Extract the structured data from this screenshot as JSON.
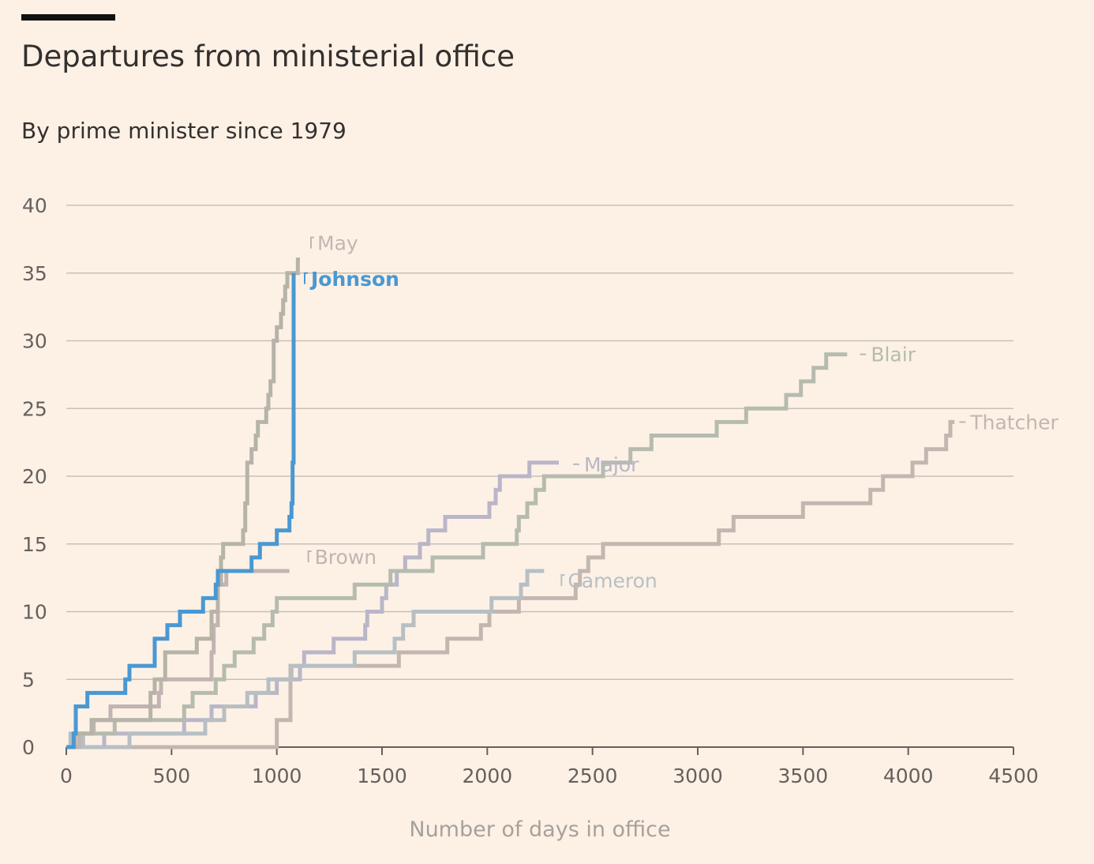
{
  "header": {
    "title": "Departures from ministerial office",
    "subtitle": "By prime minister since 1979"
  },
  "colors": {
    "background": "#fdf1e6",
    "highlight": "#4a98d2",
    "muted": "#c2b7b0"
  },
  "chart_data": {
    "type": "line",
    "step": true,
    "title": "Departures from ministerial office",
    "subtitle": "By prime minister since 1979",
    "xlabel": "Number of days in office",
    "ylabel": "",
    "xlim": [
      0,
      4500
    ],
    "ylim": [
      0,
      40
    ],
    "xticks": [
      0,
      500,
      1000,
      1500,
      2000,
      2500,
      3000,
      3500,
      4000,
      4500
    ],
    "yticks": [
      0,
      5,
      10,
      15,
      20,
      25,
      30,
      35,
      40
    ],
    "grid": true,
    "series": [
      {
        "name": "Thatcher",
        "color": "#c2b7b0",
        "label_color": "#c2b7b0",
        "points": [
          [
            0,
            0
          ],
          [
            1000,
            0
          ],
          [
            1000,
            2
          ],
          [
            1065,
            2
          ],
          [
            1065,
            6
          ],
          [
            1580,
            6
          ],
          [
            1580,
            7
          ],
          [
            1810,
            7
          ],
          [
            1810,
            8
          ],
          [
            1970,
            8
          ],
          [
            1970,
            9
          ],
          [
            2010,
            9
          ],
          [
            2010,
            10
          ],
          [
            2150,
            10
          ],
          [
            2150,
            11
          ],
          [
            2420,
            11
          ],
          [
            2420,
            12
          ],
          [
            2440,
            12
          ],
          [
            2440,
            13
          ],
          [
            2480,
            13
          ],
          [
            2480,
            14
          ],
          [
            2550,
            14
          ],
          [
            2550,
            15
          ],
          [
            3100,
            15
          ],
          [
            3100,
            16
          ],
          [
            3170,
            16
          ],
          [
            3170,
            17
          ],
          [
            3500,
            17
          ],
          [
            3500,
            18
          ],
          [
            3820,
            18
          ],
          [
            3820,
            19
          ],
          [
            3880,
            19
          ],
          [
            3880,
            20
          ],
          [
            4020,
            20
          ],
          [
            4020,
            21
          ],
          [
            4085,
            21
          ],
          [
            4085,
            22
          ],
          [
            4180,
            22
          ],
          [
            4180,
            23
          ],
          [
            4200,
            23
          ],
          [
            4200,
            24
          ],
          [
            4220,
            24
          ]
        ]
      },
      {
        "name": "Major",
        "color": "#b9b6c8",
        "label_color": "#b9b6c8",
        "points": [
          [
            0,
            0
          ],
          [
            180,
            0
          ],
          [
            180,
            1
          ],
          [
            560,
            1
          ],
          [
            560,
            2
          ],
          [
            690,
            2
          ],
          [
            690,
            3
          ],
          [
            900,
            3
          ],
          [
            900,
            4
          ],
          [
            1000,
            4
          ],
          [
            1000,
            5
          ],
          [
            1110,
            5
          ],
          [
            1110,
            6
          ],
          [
            1130,
            6
          ],
          [
            1130,
            7
          ],
          [
            1270,
            7
          ],
          [
            1270,
            8
          ],
          [
            1420,
            8
          ],
          [
            1420,
            9
          ],
          [
            1430,
            9
          ],
          [
            1430,
            10
          ],
          [
            1500,
            10
          ],
          [
            1500,
            11
          ],
          [
            1520,
            11
          ],
          [
            1520,
            12
          ],
          [
            1570,
            12
          ],
          [
            1570,
            13
          ],
          [
            1610,
            13
          ],
          [
            1610,
            14
          ],
          [
            1680,
            14
          ],
          [
            1680,
            15
          ],
          [
            1720,
            15
          ],
          [
            1720,
            16
          ],
          [
            1800,
            16
          ],
          [
            1800,
            17
          ],
          [
            2010,
            17
          ],
          [
            2010,
            18
          ],
          [
            2040,
            18
          ],
          [
            2040,
            19
          ],
          [
            2060,
            19
          ],
          [
            2060,
            20
          ],
          [
            2200,
            20
          ],
          [
            2200,
            21
          ],
          [
            2340,
            21
          ]
        ]
      },
      {
        "name": "Blair",
        "color": "#b5bcae",
        "label_color": "#b5bcae",
        "points": [
          [
            0,
            0
          ],
          [
            70,
            0
          ],
          [
            70,
            1
          ],
          [
            230,
            1
          ],
          [
            230,
            2
          ],
          [
            560,
            2
          ],
          [
            560,
            3
          ],
          [
            600,
            3
          ],
          [
            600,
            4
          ],
          [
            710,
            4
          ],
          [
            710,
            5
          ],
          [
            750,
            5
          ],
          [
            750,
            6
          ],
          [
            800,
            6
          ],
          [
            800,
            7
          ],
          [
            890,
            7
          ],
          [
            890,
            8
          ],
          [
            940,
            8
          ],
          [
            940,
            9
          ],
          [
            980,
            9
          ],
          [
            980,
            10
          ],
          [
            1000,
            10
          ],
          [
            1000,
            11
          ],
          [
            1370,
            11
          ],
          [
            1370,
            12
          ],
          [
            1540,
            12
          ],
          [
            1540,
            13
          ],
          [
            1740,
            13
          ],
          [
            1740,
            14
          ],
          [
            1980,
            14
          ],
          [
            1980,
            15
          ],
          [
            2140,
            15
          ],
          [
            2140,
            16
          ],
          [
            2150,
            16
          ],
          [
            2150,
            17
          ],
          [
            2190,
            17
          ],
          [
            2190,
            18
          ],
          [
            2230,
            18
          ],
          [
            2230,
            19
          ],
          [
            2270,
            19
          ],
          [
            2270,
            20
          ],
          [
            2550,
            20
          ],
          [
            2550,
            21
          ],
          [
            2680,
            21
          ],
          [
            2680,
            22
          ],
          [
            2780,
            22
          ],
          [
            2780,
            23
          ],
          [
            3090,
            23
          ],
          [
            3090,
            24
          ],
          [
            3230,
            24
          ],
          [
            3230,
            25
          ],
          [
            3420,
            25
          ],
          [
            3420,
            26
          ],
          [
            3490,
            26
          ],
          [
            3490,
            27
          ],
          [
            3550,
            27
          ],
          [
            3550,
            28
          ],
          [
            3610,
            28
          ],
          [
            3610,
            29
          ],
          [
            3710,
            29
          ]
        ]
      },
      {
        "name": "Brown",
        "color": "#c2b4b2",
        "label_color": "#c2b4b2",
        "points": [
          [
            0,
            0
          ],
          [
            60,
            0
          ],
          [
            60,
            1
          ],
          [
            130,
            1
          ],
          [
            130,
            2
          ],
          [
            210,
            2
          ],
          [
            210,
            3
          ],
          [
            440,
            3
          ],
          [
            440,
            4
          ],
          [
            450,
            4
          ],
          [
            450,
            5
          ],
          [
            690,
            5
          ],
          [
            690,
            7
          ],
          [
            700,
            7
          ],
          [
            700,
            9
          ],
          [
            720,
            9
          ],
          [
            720,
            12
          ],
          [
            760,
            12
          ],
          [
            760,
            13
          ],
          [
            1060,
            13
          ]
        ]
      },
      {
        "name": "Cameron",
        "color": "#b7bfc3",
        "label_color": "#b7bfc3",
        "points": [
          [
            0,
            0
          ],
          [
            20,
            0
          ],
          [
            20,
            1
          ],
          [
            80,
            1
          ],
          [
            80,
            0
          ],
          [
            300,
            0
          ],
          [
            300,
            1
          ],
          [
            660,
            1
          ],
          [
            660,
            2
          ],
          [
            750,
            2
          ],
          [
            750,
            3
          ],
          [
            860,
            3
          ],
          [
            860,
            4
          ],
          [
            960,
            4
          ],
          [
            960,
            5
          ],
          [
            1070,
            5
          ],
          [
            1070,
            6
          ],
          [
            1370,
            6
          ],
          [
            1370,
            7
          ],
          [
            1560,
            7
          ],
          [
            1560,
            8
          ],
          [
            1600,
            8
          ],
          [
            1600,
            9
          ],
          [
            1650,
            9
          ],
          [
            1650,
            10
          ],
          [
            2020,
            10
          ],
          [
            2020,
            11
          ],
          [
            2160,
            11
          ],
          [
            2160,
            12
          ],
          [
            2190,
            12
          ],
          [
            2190,
            13
          ],
          [
            2270,
            13
          ]
        ]
      },
      {
        "name": "May",
        "color": "#b6b3a8",
        "label_color": "#c2b7b0",
        "points": [
          [
            0,
            0
          ],
          [
            40,
            0
          ],
          [
            40,
            1
          ],
          [
            120,
            1
          ],
          [
            120,
            2
          ],
          [
            400,
            2
          ],
          [
            400,
            4
          ],
          [
            420,
            4
          ],
          [
            420,
            5
          ],
          [
            470,
            5
          ],
          [
            470,
            7
          ],
          [
            620,
            7
          ],
          [
            620,
            8
          ],
          [
            690,
            8
          ],
          [
            690,
            10
          ],
          [
            720,
            10
          ],
          [
            720,
            12
          ],
          [
            735,
            12
          ],
          [
            735,
            14
          ],
          [
            745,
            14
          ],
          [
            745,
            15
          ],
          [
            840,
            15
          ],
          [
            840,
            16
          ],
          [
            850,
            16
          ],
          [
            850,
            18
          ],
          [
            860,
            18
          ],
          [
            860,
            21
          ],
          [
            880,
            21
          ],
          [
            880,
            22
          ],
          [
            900,
            22
          ],
          [
            900,
            23
          ],
          [
            910,
            23
          ],
          [
            910,
            24
          ],
          [
            950,
            24
          ],
          [
            950,
            25
          ],
          [
            960,
            25
          ],
          [
            960,
            26
          ],
          [
            970,
            26
          ],
          [
            970,
            27
          ],
          [
            985,
            27
          ],
          [
            985,
            30
          ],
          [
            1000,
            30
          ],
          [
            1000,
            31
          ],
          [
            1020,
            31
          ],
          [
            1020,
            32
          ],
          [
            1030,
            32
          ],
          [
            1030,
            33
          ],
          [
            1040,
            33
          ],
          [
            1040,
            34
          ],
          [
            1050,
            34
          ],
          [
            1050,
            35
          ],
          [
            1100,
            35
          ],
          [
            1100,
            36
          ],
          [
            1110,
            36
          ]
        ]
      },
      {
        "name": "Johnson",
        "color": "#4a98d2",
        "label_color": "#4a98d2",
        "points": [
          [
            0,
            0
          ],
          [
            35,
            0
          ],
          [
            35,
            1
          ],
          [
            45,
            1
          ],
          [
            45,
            3
          ],
          [
            100,
            3
          ],
          [
            100,
            4
          ],
          [
            280,
            4
          ],
          [
            280,
            5
          ],
          [
            300,
            5
          ],
          [
            300,
            6
          ],
          [
            420,
            6
          ],
          [
            420,
            8
          ],
          [
            480,
            8
          ],
          [
            480,
            9
          ],
          [
            540,
            9
          ],
          [
            540,
            10
          ],
          [
            650,
            10
          ],
          [
            650,
            11
          ],
          [
            710,
            11
          ],
          [
            710,
            12
          ],
          [
            720,
            12
          ],
          [
            720,
            13
          ],
          [
            880,
            13
          ],
          [
            880,
            14
          ],
          [
            920,
            14
          ],
          [
            920,
            15
          ],
          [
            1000,
            15
          ],
          [
            1000,
            16
          ],
          [
            1060,
            16
          ],
          [
            1060,
            17
          ],
          [
            1070,
            17
          ],
          [
            1070,
            18
          ],
          [
            1075,
            18
          ],
          [
            1075,
            21
          ],
          [
            1080,
            21
          ],
          [
            1080,
            35
          ]
        ]
      }
    ]
  }
}
